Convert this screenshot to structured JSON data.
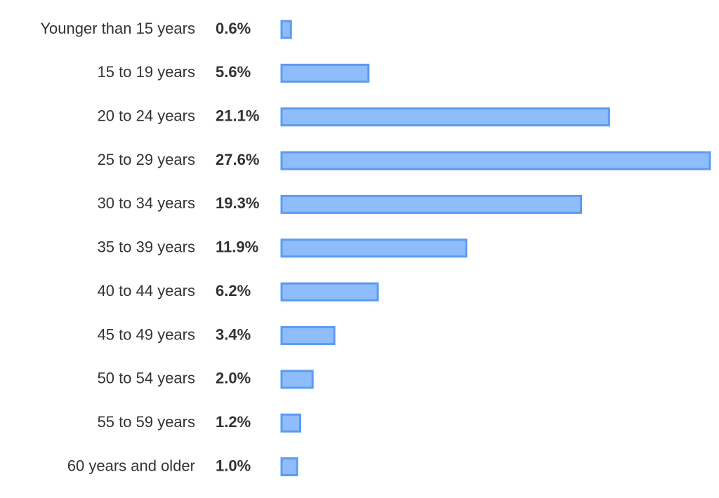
{
  "chart_data": {
    "type": "bar",
    "orientation": "horizontal",
    "categories": [
      "Younger than 15 years",
      "15 to 19 years",
      "20 to 24 years",
      "25 to 29 years",
      "30 to 34 years",
      "35 to 39 years",
      "40 to 44 years",
      "45 to 49 years",
      "50 to 54 years",
      "55 to 59 years",
      "60 years and older"
    ],
    "values": [
      0.6,
      5.6,
      21.1,
      27.6,
      19.3,
      11.9,
      6.2,
      3.4,
      2.0,
      1.2,
      1.0
    ],
    "value_labels": [
      "0.6%",
      "5.6%",
      "21.1%",
      "27.6%",
      "19.3%",
      "11.9%",
      "6.2%",
      "3.4%",
      "2.0%",
      "1.2%",
      "1.0%"
    ],
    "color": "#8fbcfa",
    "edge_color": "#5b9cf0"
  }
}
